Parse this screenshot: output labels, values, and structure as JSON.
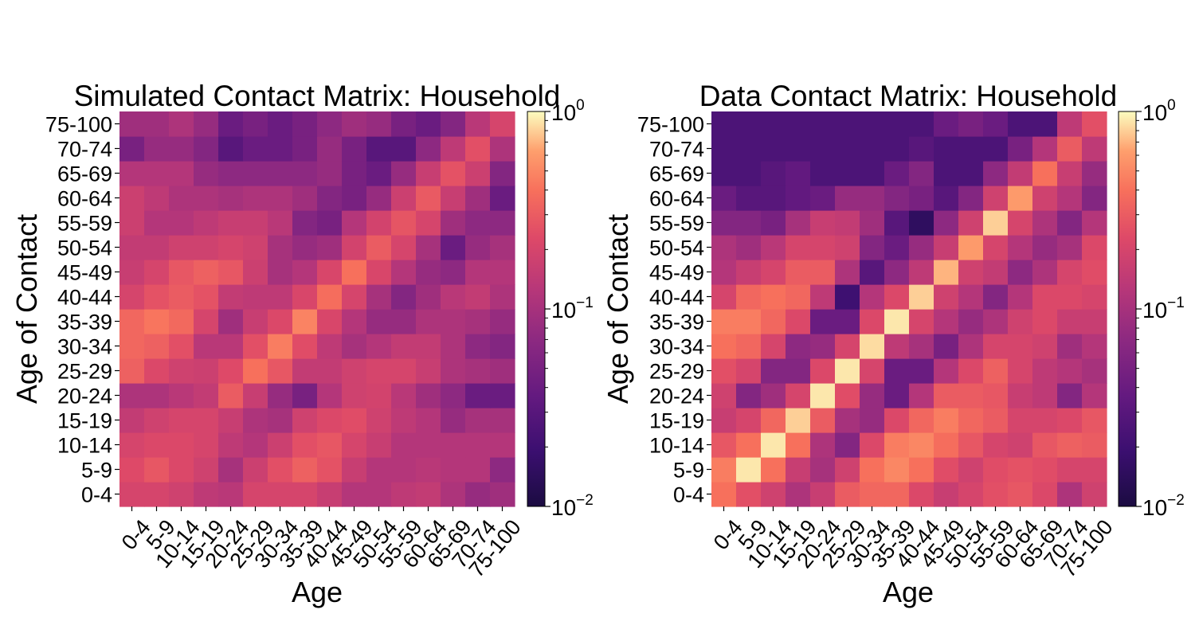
{
  "chart_data": [
    {
      "type": "heatmap",
      "title": "Simulated Contact Matrix: Household",
      "xlabel": "Age",
      "ylabel": "Age of Contact",
      "x_categories": [
        "0-4",
        "5-9",
        "10-14",
        "15-19",
        "20-24",
        "25-29",
        "30-34",
        "35-39",
        "40-44",
        "45-49",
        "50-54",
        "55-59",
        "60-64",
        "65-69",
        "70-74",
        "75-100"
      ],
      "y_categories": [
        "0-4",
        "5-9",
        "10-14",
        "15-19",
        "20-24",
        "25-29",
        "30-34",
        "35-39",
        "40-44",
        "45-49",
        "50-54",
        "55-59",
        "60-64",
        "65-69",
        "70-74",
        "75-100"
      ],
      "scale": "log",
      "colormap": "magma-like (dark purple low, light yellow high)",
      "vmin": 0.01,
      "vmax": 1,
      "colorbar_ticks": [
        {
          "base": "10",
          "exp": "0"
        },
        {
          "base": "10",
          "exp": "−1"
        },
        {
          "base": "10",
          "exp": "−2"
        }
      ],
      "values_rows_bottom_to_top": [
        [
          0.2,
          0.2,
          0.18,
          0.14,
          0.13,
          0.2,
          0.2,
          0.2,
          0.16,
          0.12,
          0.12,
          0.14,
          0.15,
          0.11,
          0.08,
          0.09
        ],
        [
          0.23,
          0.28,
          0.22,
          0.18,
          0.1,
          0.17,
          0.25,
          0.32,
          0.26,
          0.16,
          0.12,
          0.12,
          0.13,
          0.12,
          0.12,
          0.07
        ],
        [
          0.2,
          0.22,
          0.22,
          0.2,
          0.14,
          0.12,
          0.17,
          0.25,
          0.28,
          0.2,
          0.16,
          0.12,
          0.12,
          0.12,
          0.12,
          0.12
        ],
        [
          0.15,
          0.18,
          0.2,
          0.2,
          0.16,
          0.11,
          0.1,
          0.18,
          0.22,
          0.24,
          0.18,
          0.14,
          0.12,
          0.08,
          0.1,
          0.1
        ],
        [
          0.11,
          0.11,
          0.13,
          0.15,
          0.3,
          0.16,
          0.08,
          0.05,
          0.12,
          0.18,
          0.19,
          0.13,
          0.09,
          0.07,
          0.04,
          0.04
        ],
        [
          0.32,
          0.22,
          0.18,
          0.17,
          0.23,
          0.4,
          0.28,
          0.15,
          0.15,
          0.18,
          0.2,
          0.2,
          0.16,
          0.11,
          0.1,
          0.09
        ],
        [
          0.35,
          0.32,
          0.25,
          0.13,
          0.13,
          0.25,
          0.45,
          0.24,
          0.14,
          0.1,
          0.12,
          0.15,
          0.15,
          0.11,
          0.07,
          0.06
        ],
        [
          0.35,
          0.42,
          0.36,
          0.2,
          0.09,
          0.16,
          0.22,
          0.48,
          0.21,
          0.12,
          0.08,
          0.08,
          0.11,
          0.11,
          0.1,
          0.08
        ],
        [
          0.2,
          0.26,
          0.3,
          0.26,
          0.15,
          0.14,
          0.14,
          0.21,
          0.38,
          0.2,
          0.1,
          0.06,
          0.09,
          0.13,
          0.15,
          0.11
        ],
        [
          0.16,
          0.2,
          0.28,
          0.32,
          0.28,
          0.17,
          0.1,
          0.12,
          0.21,
          0.4,
          0.21,
          0.12,
          0.08,
          0.07,
          0.12,
          0.12
        ],
        [
          0.15,
          0.15,
          0.18,
          0.18,
          0.2,
          0.18,
          0.1,
          0.08,
          0.09,
          0.19,
          0.3,
          0.2,
          0.1,
          0.04,
          0.08,
          0.1
        ],
        [
          0.17,
          0.12,
          0.12,
          0.14,
          0.16,
          0.16,
          0.13,
          0.06,
          0.05,
          0.12,
          0.19,
          0.27,
          0.2,
          0.09,
          0.07,
          0.07
        ],
        [
          0.17,
          0.14,
          0.11,
          0.11,
          0.1,
          0.11,
          0.11,
          0.09,
          0.06,
          0.05,
          0.08,
          0.17,
          0.29,
          0.16,
          0.09,
          0.04
        ],
        [
          0.12,
          0.12,
          0.12,
          0.08,
          0.07,
          0.07,
          0.07,
          0.07,
          0.08,
          0.05,
          0.04,
          0.08,
          0.16,
          0.26,
          0.17,
          0.06
        ],
        [
          0.05,
          0.08,
          0.08,
          0.06,
          0.03,
          0.04,
          0.04,
          0.05,
          0.08,
          0.05,
          0.03,
          0.03,
          0.07,
          0.14,
          0.25,
          0.11
        ],
        [
          0.09,
          0.09,
          0.11,
          0.08,
          0.04,
          0.05,
          0.04,
          0.05,
          0.07,
          0.09,
          0.08,
          0.05,
          0.04,
          0.06,
          0.13,
          0.2
        ]
      ]
    },
    {
      "type": "heatmap",
      "title": "Data Contact Matrix: Household",
      "xlabel": "Age",
      "ylabel": "Age of Contact",
      "x_categories": [
        "0-4",
        "5-9",
        "10-14",
        "15-19",
        "20-24",
        "25-29",
        "30-34",
        "35-39",
        "40-44",
        "45-49",
        "50-54",
        "55-59",
        "60-64",
        "65-69",
        "70-74",
        "75-100"
      ],
      "y_categories": [
        "0-4",
        "5-9",
        "10-14",
        "15-19",
        "20-24",
        "25-29",
        "30-34",
        "35-39",
        "40-44",
        "45-49",
        "50-54",
        "55-59",
        "60-64",
        "65-69",
        "70-74",
        "75-100"
      ],
      "scale": "log",
      "colormap": "magma-like (dark purple low, light yellow high)",
      "vmin": 0.01,
      "vmax": 1,
      "colorbar_ticks": [
        {
          "base": "10",
          "exp": "0"
        },
        {
          "base": "10",
          "exp": "−1"
        },
        {
          "base": "10",
          "exp": "−2"
        }
      ],
      "values_rows_bottom_to_top": [
        [
          0.4,
          0.25,
          0.18,
          0.11,
          0.16,
          0.3,
          0.35,
          0.35,
          0.22,
          0.16,
          0.2,
          0.25,
          0.28,
          0.22,
          0.11,
          0.18
        ],
        [
          0.45,
          0.9,
          0.4,
          0.16,
          0.1,
          0.18,
          0.4,
          0.5,
          0.4,
          0.24,
          0.18,
          0.24,
          0.26,
          0.24,
          0.2,
          0.2
        ],
        [
          0.28,
          0.4,
          0.9,
          0.4,
          0.11,
          0.06,
          0.22,
          0.45,
          0.5,
          0.38,
          0.28,
          0.2,
          0.18,
          0.28,
          0.32,
          0.3
        ],
        [
          0.16,
          0.2,
          0.35,
          0.8,
          0.3,
          0.1,
          0.08,
          0.22,
          0.35,
          0.45,
          0.35,
          0.3,
          0.2,
          0.2,
          0.22,
          0.28
        ],
        [
          0.18,
          0.06,
          0.09,
          0.2,
          0.9,
          0.24,
          0.08,
          0.04,
          0.12,
          0.3,
          0.3,
          0.28,
          0.16,
          0.14,
          0.06,
          0.12
        ],
        [
          0.25,
          0.2,
          0.06,
          0.06,
          0.22,
          0.9,
          0.2,
          0.04,
          0.04,
          0.12,
          0.22,
          0.32,
          0.2,
          0.14,
          0.12,
          0.1
        ],
        [
          0.4,
          0.35,
          0.2,
          0.07,
          0.08,
          0.2,
          0.85,
          0.14,
          0.1,
          0.05,
          0.11,
          0.2,
          0.2,
          0.18,
          0.09,
          0.12
        ],
        [
          0.45,
          0.45,
          0.35,
          0.22,
          0.04,
          0.04,
          0.22,
          0.9,
          0.2,
          0.12,
          0.08,
          0.11,
          0.18,
          0.22,
          0.16,
          0.16
        ],
        [
          0.2,
          0.35,
          0.4,
          0.35,
          0.14,
          0.02,
          0.12,
          0.22,
          0.8,
          0.18,
          0.12,
          0.06,
          0.12,
          0.22,
          0.22,
          0.2
        ],
        [
          0.12,
          0.16,
          0.2,
          0.3,
          0.3,
          0.11,
          0.03,
          0.07,
          0.14,
          0.7,
          0.18,
          0.15,
          0.07,
          0.11,
          0.2,
          0.24
        ],
        [
          0.11,
          0.09,
          0.13,
          0.2,
          0.2,
          0.18,
          0.06,
          0.04,
          0.08,
          0.16,
          0.6,
          0.2,
          0.12,
          0.08,
          0.1,
          0.22
        ],
        [
          0.06,
          0.06,
          0.05,
          0.1,
          0.16,
          0.15,
          0.09,
          0.03,
          0.015,
          0.07,
          0.18,
          0.8,
          0.2,
          0.11,
          0.06,
          0.12
        ],
        [
          0.04,
          0.03,
          0.03,
          0.035,
          0.04,
          0.08,
          0.08,
          0.06,
          0.05,
          0.03,
          0.06,
          0.18,
          0.6,
          0.18,
          0.12,
          0.06
        ],
        [
          0.025,
          0.025,
          0.03,
          0.035,
          0.025,
          0.025,
          0.025,
          0.04,
          0.06,
          0.025,
          0.025,
          0.07,
          0.15,
          0.4,
          0.16,
          0.08
        ],
        [
          0.025,
          0.025,
          0.025,
          0.025,
          0.025,
          0.025,
          0.025,
          0.025,
          0.03,
          0.025,
          0.025,
          0.025,
          0.05,
          0.12,
          0.3,
          0.14
        ],
        [
          0.025,
          0.025,
          0.025,
          0.025,
          0.025,
          0.025,
          0.025,
          0.025,
          0.025,
          0.04,
          0.05,
          0.04,
          0.025,
          0.025,
          0.14,
          0.25
        ]
      ]
    }
  ]
}
